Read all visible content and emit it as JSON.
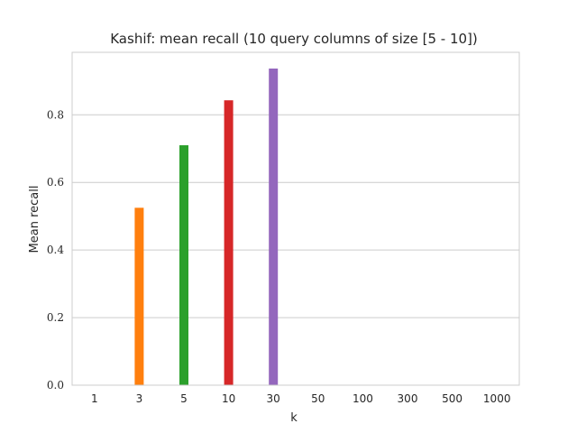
{
  "chart_data": {
    "type": "bar",
    "title": "Kashif: mean recall (10 query columns of size [5 - 10])",
    "xlabel": "k",
    "ylabel": "Mean recall",
    "categories": [
      "1",
      "3",
      "5",
      "10",
      "30",
      "50",
      "100",
      "300",
      "500",
      "1000"
    ],
    "values": [
      0.0,
      0.525,
      0.71,
      0.843,
      0.937,
      0.0,
      0.0,
      0.0,
      0.0,
      0.0
    ],
    "colors": [
      "#1f77b4",
      "#ff7f0e",
      "#2ca02c",
      "#d62728",
      "#9467bd",
      "#8c564b",
      "#e377c2",
      "#7f7f7f",
      "#bcbd22",
      "#17becf"
    ],
    "ylim": [
      0,
      0.985
    ],
    "yticks": [
      0.0,
      0.2,
      0.4,
      0.6,
      0.8
    ],
    "ytick_labels": [
      "0.0",
      "0.2",
      "0.4",
      "0.6",
      "0.8"
    ],
    "grid": "horizontal",
    "style": "whitegrid"
  }
}
